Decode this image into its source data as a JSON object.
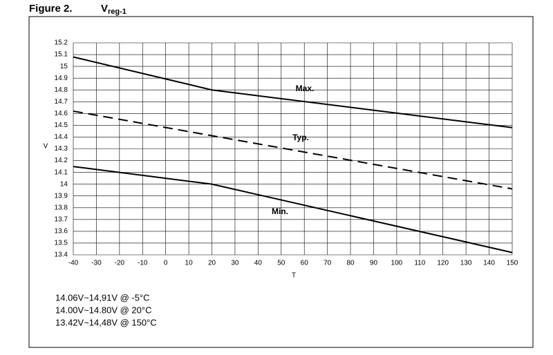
{
  "chart_data": {
    "type": "line",
    "title": "Figure 2.",
    "title_symbol": "V",
    "title_subscript": "reg-1",
    "xlabel": "T",
    "ylabel": "V",
    "x": [
      -40,
      20,
      150
    ],
    "series": [
      {
        "name": "Max.",
        "color": "#000000",
        "dashed": false,
        "values": [
          15.08,
          14.8,
          14.48
        ]
      },
      {
        "name": "Typ.",
        "color": "#000000",
        "dashed": true,
        "values": [
          14.62,
          null,
          13.96
        ]
      },
      {
        "name": "Min.",
        "color": "#000000",
        "dashed": false,
        "values": [
          14.15,
          14.0,
          13.42
        ]
      }
    ],
    "xlim": [
      -40,
      150
    ],
    "xticks": [
      -40,
      -30,
      -20,
      -10,
      0,
      10,
      20,
      30,
      40,
      50,
      60,
      70,
      80,
      90,
      100,
      110,
      120,
      130,
      140,
      150
    ],
    "ylim": [
      13.4,
      15.2
    ],
    "yticks": [
      13.4,
      13.5,
      13.6,
      13.7,
      13.8,
      13.9,
      14,
      14.1,
      14.2,
      14.3,
      14.4,
      14.5,
      14.6,
      14.7,
      14.8,
      14.9,
      15,
      15.1,
      15.2
    ],
    "grid": true,
    "notes": [
      "14.06V~14,91V @ -5°C",
      "14.00V~14.80V @ 20°C",
      "13.42V~14,48V @ 150°C"
    ]
  }
}
